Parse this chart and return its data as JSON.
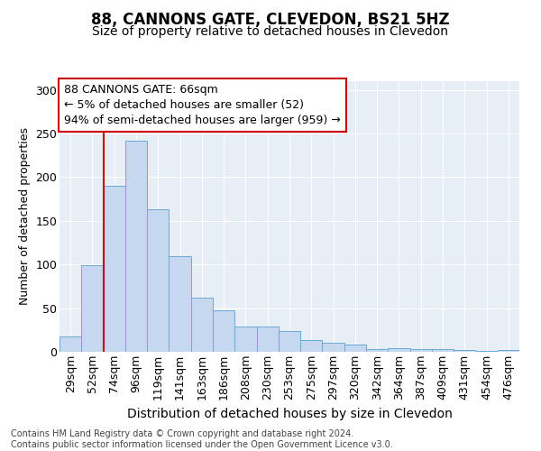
{
  "title": "88, CANNONS GATE, CLEVEDON, BS21 5HZ",
  "subtitle": "Size of property relative to detached houses in Clevedon",
  "xlabel": "Distribution of detached houses by size in Clevedon",
  "ylabel": "Number of detached properties",
  "categories": [
    "29sqm",
    "52sqm",
    "74sqm",
    "96sqm",
    "119sqm",
    "141sqm",
    "163sqm",
    "186sqm",
    "208sqm",
    "230sqm",
    "253sqm",
    "275sqm",
    "297sqm",
    "320sqm",
    "342sqm",
    "364sqm",
    "387sqm",
    "409sqm",
    "431sqm",
    "454sqm",
    "476sqm"
  ],
  "values": [
    18,
    99,
    190,
    242,
    163,
    110,
    62,
    48,
    29,
    29,
    24,
    13,
    10,
    8,
    3,
    4,
    3,
    3,
    2,
    1,
    2
  ],
  "bar_color": "#c5d8ef",
  "bar_edge_color": "#6aaad4",
  "annotation_text": "88 CANNONS GATE: 66sqm\n← 5% of detached houses are smaller (52)\n94% of semi-detached houses are larger (959) →",
  "vline_x": 2,
  "vline_color": "#cc0000",
  "box_color": "#cc0000",
  "ylim": [
    0,
    310
  ],
  "yticks": [
    0,
    50,
    100,
    150,
    200,
    250,
    300
  ],
  "background_color": "#e8eef6",
  "footer": "Contains HM Land Registry data © Crown copyright and database right 2024.\nContains public sector information licensed under the Open Government Licence v3.0.",
  "title_fontsize": 12,
  "subtitle_fontsize": 10,
  "ylabel_fontsize": 9,
  "xlabel_fontsize": 10,
  "tick_fontsize": 9,
  "ann_fontsize": 9,
  "footer_fontsize": 7
}
